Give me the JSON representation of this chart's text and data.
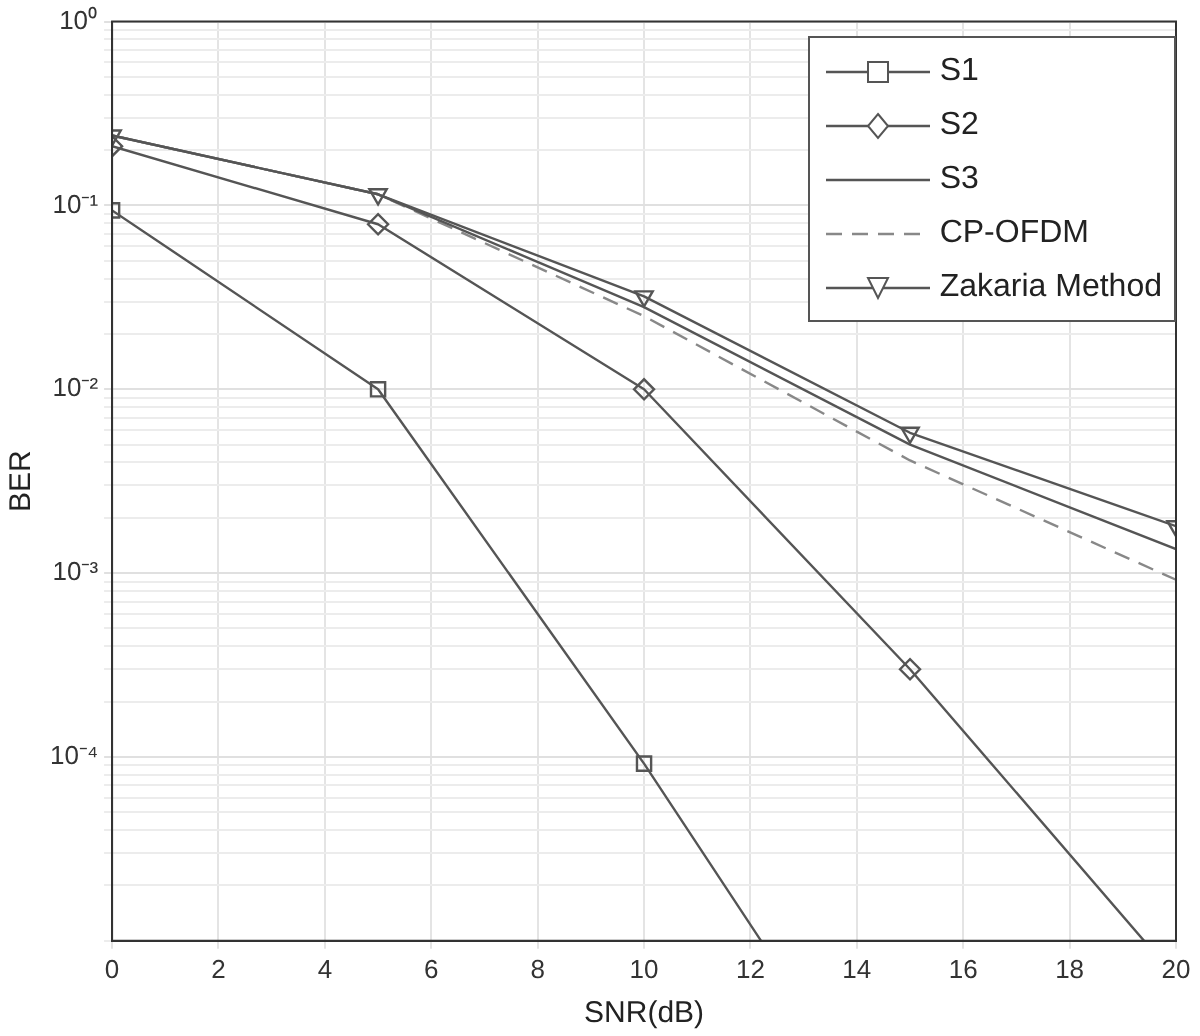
{
  "chart_data": {
    "type": "line",
    "xlabel": "SNR(dB)",
    "ylabel": "BER",
    "log": "y",
    "grid": true,
    "legend": "top right",
    "xlim": [
      0,
      20
    ],
    "xticks": [
      0,
      2,
      4,
      6,
      8,
      10,
      12,
      14,
      16,
      18,
      20
    ],
    "ylim": [
      1e-05,
      1
    ],
    "yticks": [
      {
        "value": 1e-05,
        "label": null
      },
      {
        "value": 2e-05,
        "label": null
      },
      {
        "value": 3e-05,
        "label": null
      },
      {
        "value": 4e-05,
        "label": null
      },
      {
        "value": 5e-05,
        "label": null
      },
      {
        "value": 6e-05,
        "label": null
      },
      {
        "value": 7e-05,
        "label": null
      },
      {
        "value": 8e-05,
        "label": null
      },
      {
        "value": 9e-05,
        "label": null
      },
      {
        "value": 0.0001,
        "label": "10⁻⁴"
      },
      {
        "value": 0.0002,
        "label": null
      },
      {
        "value": 0.0003,
        "label": null
      },
      {
        "value": 0.0004,
        "label": null
      },
      {
        "value": 0.0005,
        "label": null
      },
      {
        "value": 0.0006,
        "label": null
      },
      {
        "value": 0.0007,
        "label": null
      },
      {
        "value": 0.0008,
        "label": null
      },
      {
        "value": 0.0009,
        "label": null
      },
      {
        "value": 0.001,
        "label": "10⁻³"
      },
      {
        "value": 0.002,
        "label": null
      },
      {
        "value": 0.003,
        "label": null
      },
      {
        "value": 0.004,
        "label": null
      },
      {
        "value": 0.005,
        "label": null
      },
      {
        "value": 0.006,
        "label": null
      },
      {
        "value": 0.007,
        "label": null
      },
      {
        "value": 0.008,
        "label": null
      },
      {
        "value": 0.009,
        "label": null
      },
      {
        "value": 0.01,
        "label": "10⁻²"
      },
      {
        "value": 0.02,
        "label": null
      },
      {
        "value": 0.03,
        "label": null
      },
      {
        "value": 0.04,
        "label": null
      },
      {
        "value": 0.05,
        "label": null
      },
      {
        "value": 0.06,
        "label": null
      },
      {
        "value": 0.07,
        "label": null
      },
      {
        "value": 0.08,
        "label": null
      },
      {
        "value": 0.09,
        "label": null
      },
      {
        "value": 0.1,
        "label": "10⁻¹"
      },
      {
        "value": 0.2,
        "label": null
      },
      {
        "value": 0.3,
        "label": null
      },
      {
        "value": 0.4,
        "label": null
      },
      {
        "value": 0.5,
        "label": null
      },
      {
        "value": 0.6,
        "label": null
      },
      {
        "value": 0.7,
        "label": null
      },
      {
        "value": 0.8,
        "label": null
      },
      {
        "value": 0.9,
        "label": null
      },
      {
        "value": 1,
        "label": "10⁰"
      }
    ],
    "series": [
      {
        "name": "S1",
        "color": "#555555",
        "marker": "square",
        "line_style": "solid",
        "x": [
          0,
          5,
          10,
          12.2
        ],
        "values": [
          0.094,
          0.01,
          9.2e-05,
          1e-05
        ]
      },
      {
        "name": "S2",
        "color": "#555555",
        "marker": "diamond",
        "line_style": "solid",
        "x": [
          0,
          5,
          10,
          15,
          19.4
        ],
        "values": [
          0.21,
          0.079,
          0.01,
          0.0003,
          1e-05
        ]
      },
      {
        "name": "S3",
        "color": "#555555",
        "marker": "none",
        "line_style": "solid",
        "x": [
          0,
          5,
          10,
          15,
          20
        ],
        "values": [
          0.24,
          0.115,
          0.028,
          0.005,
          0.00135
        ]
      },
      {
        "name": "CP-OFDM",
        "color": "#888888",
        "marker": "none",
        "line_style": "dashed",
        "x": [
          0,
          5,
          10,
          15,
          20
        ],
        "values": [
          0.24,
          0.115,
          0.025,
          0.0041,
          0.00092
        ]
      },
      {
        "name": "Zakaria Method",
        "color": "#555555",
        "marker": "triangle",
        "line_style": "solid",
        "x": [
          0,
          5,
          10,
          15,
          20
        ],
        "values": [
          0.24,
          0.115,
          0.032,
          0.0058,
          0.0018
        ]
      }
    ]
  }
}
